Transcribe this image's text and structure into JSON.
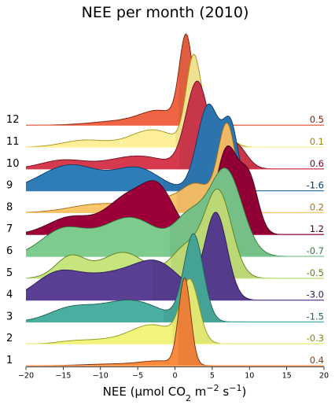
{
  "chart_data": {
    "type": "ridgeline",
    "title": "NEE per month (2010)",
    "xlabel": {
      "prefix": "NEE (μmol CO",
      "sub": "2",
      "mid": " m",
      "sup1": "−2",
      "mid2": " s",
      "sup2": "−1",
      "suffix": ")"
    },
    "xlim": [
      -20,
      20
    ],
    "xticks": [
      -20,
      -15,
      -10,
      -5,
      0,
      5,
      10,
      15,
      20
    ],
    "xtick_labels": [
      "−20",
      "−15",
      "−10",
      "−5",
      "0",
      "5",
      "10",
      "15",
      "20"
    ],
    "grid": false,
    "series": [
      {
        "name": "1",
        "mean": 0.4,
        "mean_label": "0.4",
        "color": "#fa8a3c",
        "edge": "#7a2d06",
        "label_color": "#8a3a08",
        "bumps": [
          [
            1.3,
            0.8,
            1.0
          ],
          [
            -2,
            2.5,
            0.05
          ],
          [
            -8,
            4,
            0.02
          ]
        ]
      },
      {
        "name": "2",
        "mean": -0.3,
        "mean_label": "-0.3",
        "color": "#f0f47a",
        "edge": "#8f961c",
        "label_color": "#7a8a10",
        "bumps": [
          [
            2.0,
            1.2,
            0.7
          ],
          [
            -3,
            3,
            0.22
          ],
          [
            -10,
            3,
            0.04
          ],
          [
            -14,
            2,
            0.02
          ]
        ]
      },
      {
        "name": "3",
        "mean": -1.5,
        "mean_label": "-1.5",
        "color": "#4aaea0",
        "edge": "#1e5f56",
        "label_color": "#1e5f56",
        "bumps": [
          [
            2.5,
            1.3,
            1.0
          ],
          [
            -6,
            4,
            0.25
          ],
          [
            -14,
            3,
            0.15
          ]
        ]
      },
      {
        "name": "4",
        "mean": -3.0,
        "mean_label": "-3.0",
        "color": "#5a3f94",
        "edge": "#2a1a55",
        "label_color": "#2a1a55",
        "bumps": [
          [
            5.5,
            1.5,
            1.0
          ],
          [
            -8,
            5,
            0.3
          ],
          [
            -16,
            3,
            0.25
          ],
          [
            -2,
            3,
            0.3
          ]
        ]
      },
      {
        "name": "5",
        "mean": -0.5,
        "mean_label": "-0.5",
        "color": "#c7e57e",
        "edge": "#5d7e1a",
        "label_color": "#5d7e1a",
        "bumps": [
          [
            5.8,
            1.8,
            1.0
          ],
          [
            1.5,
            2,
            0.35
          ],
          [
            -7,
            3,
            0.3
          ],
          [
            -14,
            2,
            0.25
          ]
        ]
      },
      {
        "name": "6",
        "mean": -0.7,
        "mean_label": "-0.7",
        "color": "#7ecb8f",
        "edge": "#2d7a3e",
        "label_color": "#2d7a3e",
        "bumps": [
          [
            6.8,
            2.2,
            1.0
          ],
          [
            2,
            2,
            0.4
          ],
          [
            -6,
            4,
            0.45
          ],
          [
            -15,
            3,
            0.3
          ]
        ]
      },
      {
        "name": "7",
        "mean": 1.2,
        "mean_label": "1.2",
        "color": "#9b0039",
        "edge": "#45001a",
        "label_color": "#45001a",
        "bumps": [
          [
            7.0,
            1.5,
            1.0
          ],
          [
            10,
            1.2,
            0.6
          ],
          [
            -6,
            3,
            0.45
          ],
          [
            -2,
            2,
            0.4
          ],
          [
            -14,
            3,
            0.2
          ]
        ]
      },
      {
        "name": "8",
        "mean": 0.2,
        "mean_label": "0.2",
        "color": "#fec66c",
        "edge": "#a86b10",
        "label_color": "#a86b10",
        "bumps": [
          [
            7.0,
            1.2,
            1.0
          ],
          [
            3,
            2,
            0.3
          ],
          [
            -2,
            3,
            0.15
          ],
          [
            -10,
            4,
            0.1
          ]
        ]
      },
      {
        "name": "9",
        "mean": -1.6,
        "mean_label": "-1.6",
        "color": "#2e7cb8",
        "edge": "#0c3a66",
        "label_color": "#0c3a66",
        "bumps": [
          [
            4.5,
            1.5,
            1.0
          ],
          [
            7.5,
            1,
            0.7
          ],
          [
            -14,
            4,
            0.3
          ],
          [
            -5,
            3,
            0.25
          ]
        ]
      },
      {
        "name": "10",
        "mean": 0.6,
        "mean_label": "0.6",
        "color": "#d53a4e",
        "edge": "#6b0a1c",
        "label_color": "#6b0a1c",
        "bumps": [
          [
            3.0,
            1.5,
            1.0
          ],
          [
            8,
            1.5,
            0.3
          ],
          [
            -5,
            4,
            0.15
          ],
          [
            -15,
            3,
            0.1
          ]
        ]
      },
      {
        "name": "11",
        "mean": 0.1,
        "mean_label": "0.1",
        "color": "#fef09a",
        "edge": "#a89010",
        "label_color": "#9a8510",
        "bumps": [
          [
            2.5,
            1.0,
            1.0
          ],
          [
            5.5,
            1.5,
            0.3
          ],
          [
            -3,
            3,
            0.2
          ],
          [
            -12,
            3,
            0.08
          ]
        ]
      },
      {
        "name": "12",
        "mean": 0.5,
        "mean_label": "0.5",
        "color": "#ee6444",
        "edge": "#7a1a08",
        "label_color": "#7a1a08",
        "bumps": [
          [
            1.5,
            0.9,
            1.0
          ],
          [
            -2,
            2.5,
            0.15
          ],
          [
            -7,
            4,
            0.05
          ]
        ]
      }
    ]
  }
}
